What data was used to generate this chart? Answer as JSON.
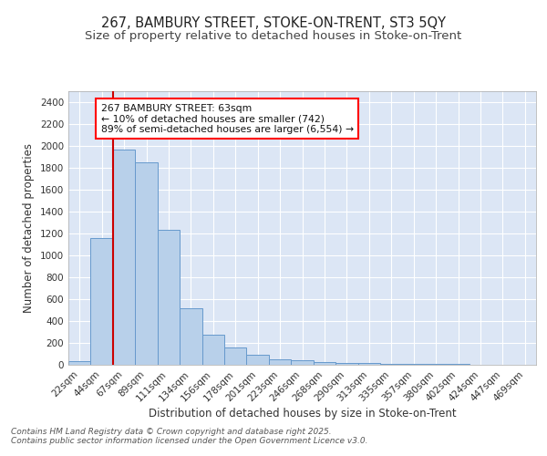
{
  "title1": "267, BAMBURY STREET, STOKE-ON-TRENT, ST3 5QY",
  "title2": "Size of property relative to detached houses in Stoke-on-Trent",
  "xlabel": "Distribution of detached houses by size in Stoke-on-Trent",
  "ylabel": "Number of detached properties",
  "categories": [
    "22sqm",
    "44sqm",
    "67sqm",
    "89sqm",
    "111sqm",
    "134sqm",
    "156sqm",
    "178sqm",
    "201sqm",
    "223sqm",
    "246sqm",
    "268sqm",
    "290sqm",
    "313sqm",
    "335sqm",
    "357sqm",
    "380sqm",
    "402sqm",
    "424sqm",
    "447sqm",
    "469sqm"
  ],
  "values": [
    30,
    1160,
    1970,
    1850,
    1230,
    515,
    275,
    155,
    90,
    50,
    45,
    25,
    20,
    15,
    10,
    8,
    5,
    5,
    3,
    2,
    2
  ],
  "bar_color": "#b8d0ea",
  "bar_edge_color": "#6699cc",
  "vline_color": "#cc0000",
  "annotation_text": "267 BAMBURY STREET: 63sqm\n← 10% of detached houses are smaller (742)\n89% of semi-detached houses are larger (6,554) →",
  "annotation_box_color": "white",
  "annotation_box_edge": "red",
  "ylim": [
    0,
    2500
  ],
  "yticks": [
    0,
    200,
    400,
    600,
    800,
    1000,
    1200,
    1400,
    1600,
    1800,
    2000,
    2200,
    2400
  ],
  "fig_background": "#ffffff",
  "plot_background": "#dce6f5",
  "grid_color": "#ffffff",
  "footer1": "Contains HM Land Registry data © Crown copyright and database right 2025.",
  "footer2": "Contains public sector information licensed under the Open Government Licence v3.0.",
  "title_fontsize": 10.5,
  "subtitle_fontsize": 9.5,
  "label_fontsize": 8.5,
  "tick_fontsize": 7.5,
  "footer_fontsize": 6.5
}
